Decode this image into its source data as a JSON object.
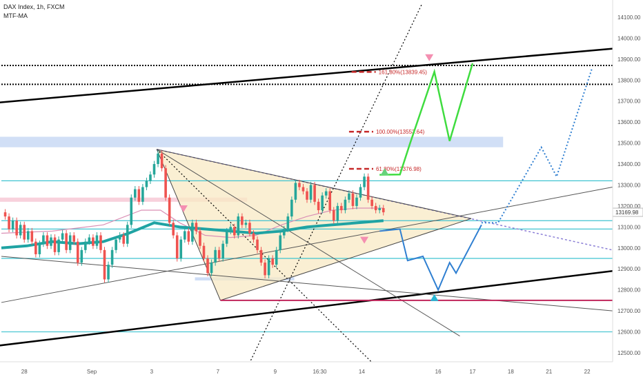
{
  "chart_data": {
    "type": "line",
    "title": "DAX Index, 1h, FXCM",
    "indicator": "MTF-MA",
    "y_ticks": [
      12500,
      12600,
      12700,
      12800,
      12900,
      13000,
      13100,
      13200,
      13300,
      13400,
      13500,
      13600,
      13700,
      13800,
      13900,
      14000,
      14100
    ],
    "x_ticks": [
      {
        "label": "28",
        "t": 18
      },
      {
        "label": "Sep",
        "t": 71
      },
      {
        "label": "3",
        "t": 118
      },
      {
        "label": "7",
        "t": 170
      },
      {
        "label": "9",
        "t": 215
      },
      {
        "label": "16:30",
        "t": 250
      },
      {
        "label": "14",
        "t": 283
      },
      {
        "label": "16",
        "t": 343
      },
      {
        "label": "17",
        "t": 370
      },
      {
        "label": "18",
        "t": 400
      },
      {
        "label": "21",
        "t": 430
      },
      {
        "label": "22",
        "t": 460
      }
    ],
    "current_price": 13169.98,
    "price_series": [
      [
        0,
        13170
      ],
      [
        3,
        13150
      ],
      [
        6,
        13090
      ],
      [
        9,
        13130
      ],
      [
        12,
        13060
      ],
      [
        15,
        13110
      ],
      [
        18,
        13040
      ],
      [
        21,
        13080
      ],
      [
        24,
        13030
      ],
      [
        27,
        12970
      ],
      [
        30,
        13020
      ],
      [
        33,
        13060
      ],
      [
        36,
        13010
      ],
      [
        39,
        13050
      ],
      [
        42,
        12980
      ],
      [
        45,
        13040
      ],
      [
        48,
        13070
      ],
      [
        51,
        12990
      ],
      [
        54,
        13060
      ],
      [
        57,
        13030
      ],
      [
        60,
        12930
      ],
      [
        63,
        12990
      ],
      [
        66,
        13030
      ],
      [
        69,
        13050
      ],
      [
        72,
        13010
      ],
      [
        75,
        13060
      ],
      [
        78,
        12990
      ],
      [
        81,
        12850
      ],
      [
        84,
        12920
      ],
      [
        87,
        12990
      ],
      [
        90,
        13040
      ],
      [
        93,
        13060
      ],
      [
        96,
        13020
      ],
      [
        99,
        13110
      ],
      [
        102,
        13240
      ],
      [
        105,
        13280
      ],
      [
        108,
        13220
      ],
      [
        111,
        13290
      ],
      [
        114,
        13320
      ],
      [
        117,
        13350
      ],
      [
        120,
        13400
      ],
      [
        123,
        13450
      ],
      [
        126,
        13380
      ],
      [
        129,
        13240
      ],
      [
        132,
        13120
      ],
      [
        135,
        13060
      ],
      [
        138,
        12950
      ],
      [
        141,
        13040
      ],
      [
        144,
        13080
      ],
      [
        147,
        13030
      ],
      [
        150,
        13120
      ],
      [
        153,
        13080
      ],
      [
        156,
        13010
      ],
      [
        159,
        12950
      ],
      [
        162,
        12880
      ],
      [
        165,
        12930
      ],
      [
        168,
        12990
      ],
      [
        171,
        12950
      ],
      [
        174,
        13020
      ],
      [
        177,
        13080
      ],
      [
        180,
        13100
      ],
      [
        183,
        13060
      ],
      [
        186,
        13150
      ],
      [
        189,
        13110
      ],
      [
        192,
        13120
      ],
      [
        195,
        13070
      ],
      [
        198,
        13040
      ],
      [
        201,
        12990
      ],
      [
        204,
        12930
      ],
      [
        207,
        12870
      ],
      [
        210,
        12950
      ],
      [
        213,
        12920
      ],
      [
        216,
        12990
      ],
      [
        219,
        13060
      ],
      [
        222,
        13090
      ],
      [
        225,
        13150
      ],
      [
        228,
        13230
      ],
      [
        231,
        13310
      ],
      [
        234,
        13290
      ],
      [
        237,
        13270
      ],
      [
        240,
        13230
      ],
      [
        243,
        13300
      ],
      [
        246,
        13220
      ],
      [
        249,
        13180
      ],
      [
        252,
        13250
      ],
      [
        255,
        13270
      ],
      [
        258,
        13180
      ],
      [
        261,
        13130
      ],
      [
        264,
        13200
      ],
      [
        267,
        13180
      ],
      [
        270,
        13230
      ],
      [
        273,
        13260
      ],
      [
        276,
        13200
      ],
      [
        279,
        13240
      ],
      [
        282,
        13290
      ],
      [
        285,
        13340
      ],
      [
        288,
        13230
      ],
      [
        291,
        13200
      ],
      [
        294,
        13180
      ],
      [
        297,
        13190
      ],
      [
        300,
        13170
      ]
    ],
    "mtf_ma_series": [
      [
        0,
        13000
      ],
      [
        20,
        13010
      ],
      [
        40,
        13030
      ],
      [
        60,
        13020
      ],
      [
        80,
        13030
      ],
      [
        100,
        13070
      ],
      [
        120,
        13120
      ],
      [
        140,
        13100
      ],
      [
        160,
        13090
      ],
      [
        180,
        13080
      ],
      [
        200,
        13070
      ],
      [
        220,
        13080
      ],
      [
        240,
        13100
      ],
      [
        260,
        13110
      ],
      [
        280,
        13120
      ],
      [
        300,
        13130
      ]
    ],
    "slow_ma_series": [
      [
        0,
        13070
      ],
      [
        40,
        13080
      ],
      [
        80,
        13110
      ],
      [
        110,
        13180
      ],
      [
        125,
        13180
      ],
      [
        140,
        13120
      ],
      [
        160,
        13060
      ],
      [
        180,
        13050
      ],
      [
        200,
        13060
      ],
      [
        220,
        13110
      ],
      [
        240,
        13150
      ],
      [
        260,
        13180
      ],
      [
        280,
        13190
      ],
      [
        300,
        13190
      ]
    ],
    "support_resistance_levels": [
      12950,
      13090,
      13130,
      13320,
      12600
    ],
    "resistance_zone": {
      "y_min": 13480,
      "y_max": 13530
    },
    "dotted_levels": [
      13870,
      13780
    ],
    "fib_levels": [
      {
        "label": "61.80%(13376.98)",
        "price": 13377,
        "t_start": 273,
        "t_end": 292
      },
      {
        "label": "100.00%(13553.64)",
        "price": 13554,
        "t_start": 273,
        "t_end": 292
      },
      {
        "label": "161.80%(13839.45)",
        "price": 13839,
        "t_start": 275,
        "t_end": 294
      }
    ],
    "bullish_projection": [
      [
        297,
        13349
      ],
      [
        313,
        13350
      ],
      [
        321,
        13500
      ],
      [
        340,
        13840
      ],
      [
        352,
        13510
      ],
      [
        370,
        13880
      ]
    ],
    "bearish_projection": [
      [
        297,
        13080
      ],
      [
        313,
        13090
      ],
      [
        319,
        12940
      ],
      [
        331,
        12960
      ],
      [
        343,
        12800
      ],
      [
        352,
        12930
      ],
      [
        357,
        12880
      ],
      [
        377,
        13110
      ]
    ],
    "dotted_projection": [
      [
        377,
        13120
      ],
      [
        390,
        13120
      ],
      [
        424,
        13480
      ],
      [
        436,
        13340
      ],
      [
        464,
        13860
      ]
    ],
    "triangle": [
      [
        122,
        13470
      ],
      [
        172,
        12750
      ],
      [
        369,
        13140
      ]
    ],
    "horizontal_support": {
      "price": 12750,
      "t_start": 172,
      "t_end": 480
    },
    "channel_upper": {
      "t1": -8,
      "p1": 13690,
      "t2": 480,
      "p2": 13950
    },
    "channel_lower": {
      "t1": -8,
      "p1": 12530,
      "t2": 480,
      "p2": 12890
    },
    "ylim": [
      12450,
      14150
    ],
    "xlim": [
      0,
      480
    ]
  }
}
